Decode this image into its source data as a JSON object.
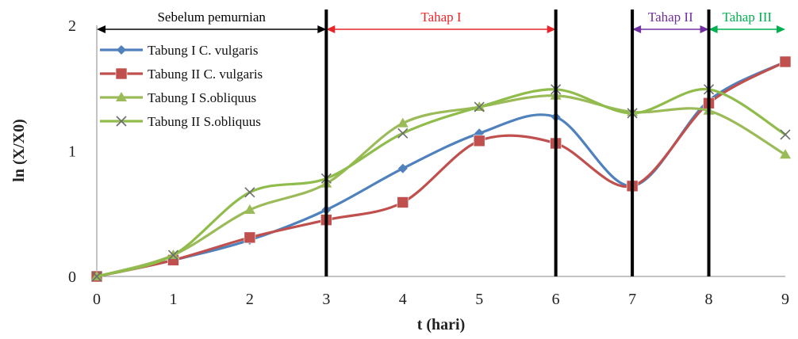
{
  "chart_data": {
    "type": "line",
    "xlabel": "t (hari)",
    "ylabel": "ln (X/X0)",
    "xlim": [
      0,
      9
    ],
    "ylim": [
      0,
      2
    ],
    "x_ticks": [
      "0",
      "1",
      "2",
      "3",
      "4",
      "5",
      "6",
      "7",
      "8",
      "9"
    ],
    "y_ticks": [
      "0",
      "1",
      "2"
    ],
    "grid": false,
    "legend_position": "top-left",
    "x": [
      0,
      1,
      2,
      3,
      4,
      5,
      6,
      7,
      8,
      9
    ],
    "series": [
      {
        "name": "Tabung I C. vulgaris",
        "color": "#4f81bd",
        "marker": "diamond",
        "values": [
          0,
          0.13,
          0.29,
          0.53,
          0.86,
          1.14,
          1.27,
          0.72,
          1.4,
          1.71
        ]
      },
      {
        "name": "Tabung II C. vulgaris",
        "color": "#c0504d",
        "marker": "square",
        "values": [
          0,
          0.13,
          0.31,
          0.45,
          0.59,
          1.08,
          1.06,
          0.72,
          1.38,
          1.71
        ]
      },
      {
        "name": "Tabung I S.obliquus",
        "color": "#9bbb59",
        "marker": "triangle",
        "values": [
          0,
          0.17,
          0.53,
          0.74,
          1.22,
          1.35,
          1.44,
          1.31,
          1.32,
          0.97
        ]
      },
      {
        "name": "Tabung II S.obliquus",
        "color": "#8fbc4a",
        "marker": "x",
        "values": [
          0,
          0.17,
          0.67,
          0.78,
          1.14,
          1.35,
          1.49,
          1.3,
          1.49,
          1.13
        ]
      }
    ],
    "phase_lines_at": [
      3,
      6,
      7,
      8
    ],
    "phases": [
      {
        "label": "Sebelum pemurnian",
        "from": 0,
        "to": 3,
        "color": "#000000"
      },
      {
        "label": "Tahap I",
        "from": 3,
        "to": 6,
        "color": "#e8262a"
      },
      {
        "label": "Tahap II",
        "from": 7,
        "to": 8,
        "color": "#7030a0"
      },
      {
        "label": "Tahap III",
        "from": 8,
        "to": 9,
        "color": "#00b050"
      }
    ]
  }
}
